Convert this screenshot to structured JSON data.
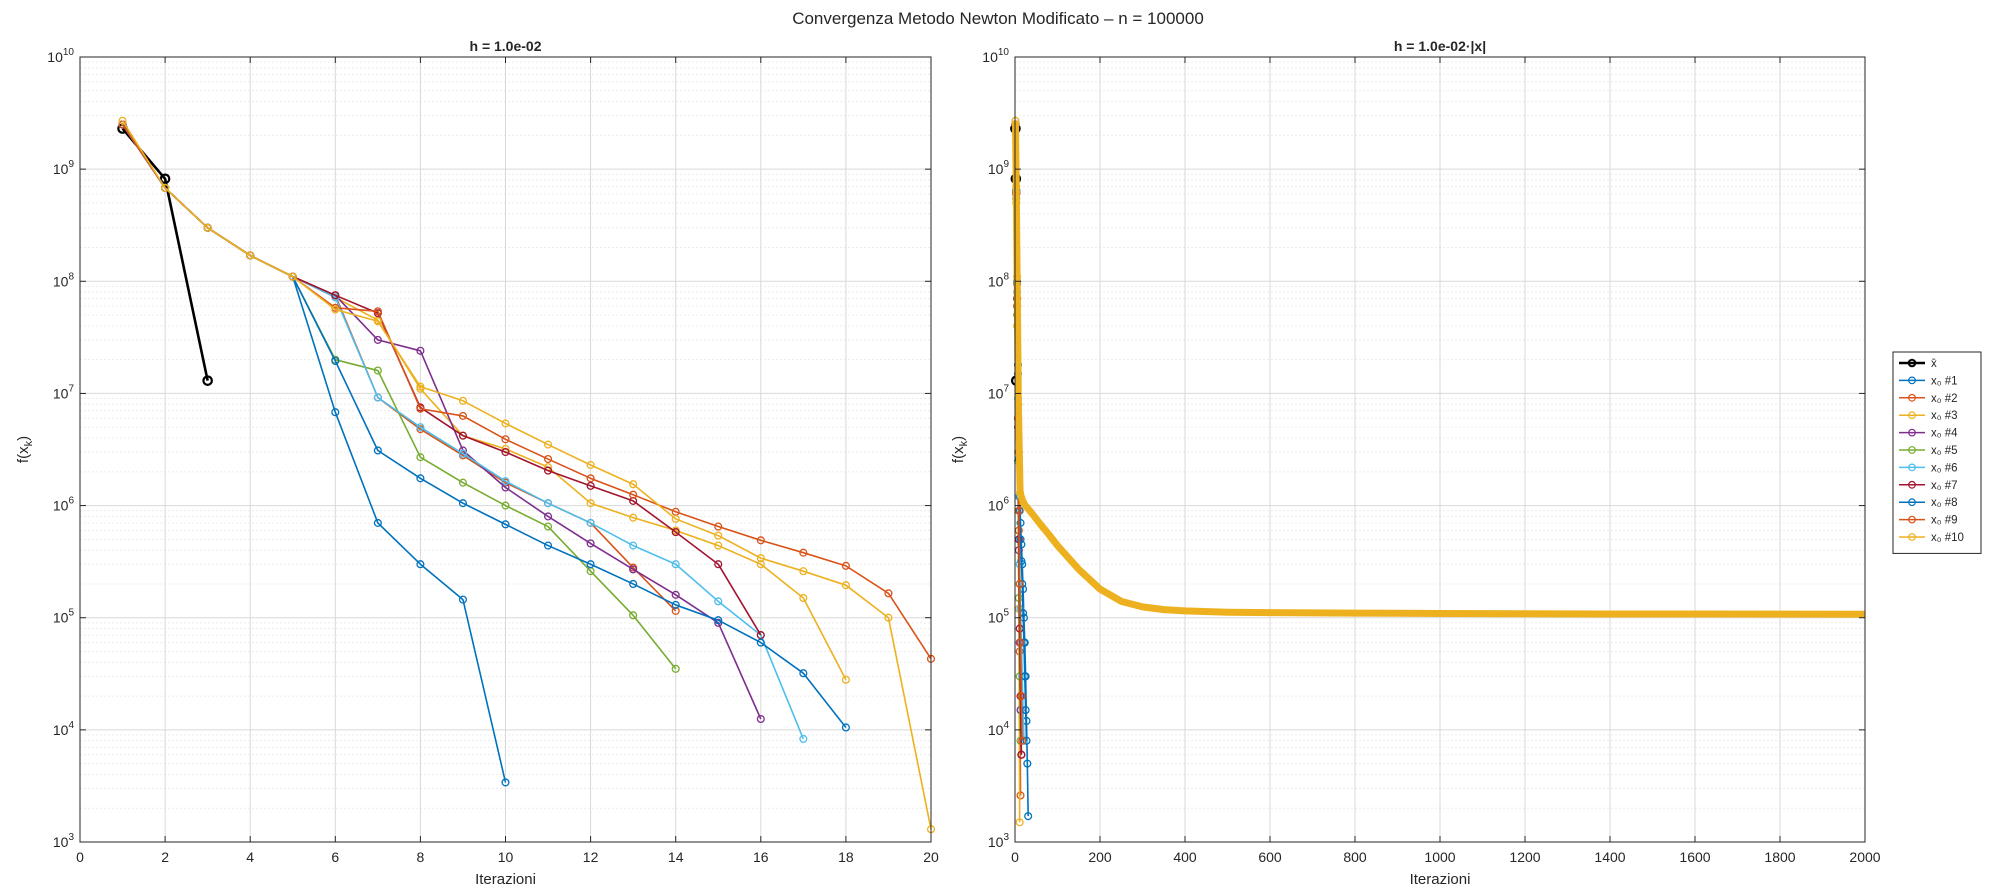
{
  "suptitle": "Convergenza Metodo Newton Modificato – n = 100000",
  "colors": {
    "xbar": "#000000",
    "x01": "#0072BD",
    "x02": "#D95319",
    "x03": "#EDB120",
    "x04": "#7E2F8E",
    "x05": "#77AC30",
    "x06": "#4DBEEE",
    "x07": "#A2142F",
    "x08": "#0072BD",
    "x09": "#D95319",
    "x10": "#EDB120"
  },
  "legend": [
    "x̄",
    "x₀ #1",
    "x₀ #2",
    "x₀ #3",
    "x₀ #4",
    "x₀ #5",
    "x₀ #6",
    "x₀ #7",
    "x₀ #8",
    "x₀ #9",
    "x₀ #10"
  ],
  "chart_data": [
    {
      "type": "line",
      "title": "h = 1.0e-02",
      "xlabel": "Iterazioni",
      "ylabel": "f(x_k)",
      "ylabel_main": "f(x",
      "ylabel_sub": "k",
      "ylabel_close": ")",
      "yscale": "log",
      "xlim": [
        0,
        20
      ],
      "ylim": [
        1000,
        10000000000
      ],
      "xticks": [
        0,
        2,
        4,
        6,
        8,
        10,
        12,
        14,
        16,
        18,
        20
      ],
      "yticks_exp": [
        3,
        4,
        5,
        6,
        7,
        8,
        9,
        10
      ],
      "grid": true,
      "series": [
        {
          "name": "x̄",
          "x": [
            1,
            2,
            3
          ],
          "y": [
            2300000000,
            820000000,
            13000000
          ]
        },
        {
          "name": "x₀ #1",
          "x": [
            1,
            2,
            3,
            4,
            5,
            6,
            7,
            8,
            9,
            10
          ],
          "y": [
            2500000000,
            680000000,
            300000000,
            170000000,
            110000000,
            6800000,
            700000,
            300000,
            145000,
            3400
          ]
        },
        {
          "name": "x₀ #2",
          "x": [
            1,
            2,
            3,
            4,
            5,
            6,
            7,
            8,
            9,
            10,
            11,
            12,
            13,
            14
          ],
          "y": [
            2500000000,
            680000000,
            300000000,
            170000000,
            110000000,
            75000000,
            9200000,
            4800000,
            2800000,
            1600000,
            1050000,
            700000,
            280000,
            115000
          ]
        },
        {
          "name": "x₀ #3",
          "x": [
            1,
            2,
            3,
            4,
            5,
            6,
            7,
            8,
            9,
            10,
            11,
            12,
            13,
            14,
            15,
            16,
            17,
            18
          ],
          "y": [
            2500000000,
            680000000,
            300000000,
            170000000,
            110000000,
            72000000,
            45000000,
            11000000,
            4200000,
            3200000,
            2200000,
            1050000,
            780000,
            600000,
            440000,
            300000,
            150000,
            28000
          ]
        },
        {
          "name": "x₀ #4",
          "x": [
            1,
            2,
            3,
            4,
            5,
            6,
            7,
            8,
            9,
            10,
            11,
            12,
            13,
            14,
            15,
            16
          ],
          "y": [
            2500000000,
            680000000,
            300000000,
            170000000,
            110000000,
            75000000,
            30000000,
            24000000,
            3100000,
            1450000,
            800000,
            460000,
            270000,
            160000,
            90000,
            12500
          ]
        },
        {
          "name": "x₀ #5",
          "x": [
            1,
            2,
            3,
            4,
            5,
            6,
            7,
            8,
            9,
            10,
            11,
            12,
            13,
            14
          ],
          "y": [
            2500000000,
            680000000,
            300000000,
            170000000,
            110000000,
            20000000,
            16000000,
            2700000,
            1600000,
            1000000,
            650000,
            260000,
            105000,
            35000
          ]
        },
        {
          "name": "x₀ #6",
          "x": [
            1,
            2,
            3,
            4,
            5,
            6,
            7,
            8,
            9,
            10,
            11,
            12,
            13,
            14,
            15,
            16,
            17
          ],
          "y": [
            2500000000,
            680000000,
            300000000,
            170000000,
            110000000,
            72000000,
            9200000,
            5000000,
            2900000,
            1650000,
            1050000,
            700000,
            440000,
            300000,
            140000,
            70000,
            8300
          ]
        },
        {
          "name": "x₀ #7",
          "x": [
            1,
            2,
            3,
            4,
            5,
            6,
            7,
            8,
            9,
            10,
            11,
            12,
            13,
            14,
            15,
            16
          ],
          "y": [
            2500000000,
            680000000,
            300000000,
            170000000,
            110000000,
            75000000,
            52000000,
            7500000,
            4200000,
            3000000,
            2050000,
            1500000,
            1100000,
            580000,
            300000,
            70000
          ]
        },
        {
          "name": "x₀ #8",
          "x": [
            1,
            2,
            3,
            4,
            5,
            6,
            7,
            8,
            9,
            10,
            11,
            12,
            13,
            14,
            15,
            16,
            17,
            18
          ],
          "y": [
            2500000000,
            680000000,
            300000000,
            170000000,
            110000000,
            19500000,
            3100000,
            1750000,
            1050000,
            680000,
            440000,
            300000,
            200000,
            130000,
            95000,
            60000,
            32000,
            10500
          ]
        },
        {
          "name": "x₀ #9",
          "x": [
            1,
            2,
            3,
            4,
            5,
            6,
            7,
            8,
            9,
            10,
            11,
            12,
            13,
            14,
            15,
            16,
            17,
            18,
            19,
            20
          ],
          "y": [
            2500000000,
            680000000,
            300000000,
            170000000,
            110000000,
            58000000,
            54000000,
            7300000,
            6300000,
            3900000,
            2600000,
            1750000,
            1250000,
            880000,
            650000,
            490000,
            380000,
            290000,
            165000,
            43000
          ]
        },
        {
          "name": "x₀ #10",
          "x": [
            1,
            2,
            3,
            4,
            5,
            6,
            7,
            8,
            9,
            10,
            11,
            12,
            13,
            14,
            15,
            16,
            17,
            18,
            19,
            20
          ],
          "y": [
            2700000000,
            680000000,
            300000000,
            170000000,
            110000000,
            56000000,
            44000000,
            11500000,
            8600000,
            5400000,
            3500000,
            2300000,
            1550000,
            760000,
            540000,
            340000,
            260000,
            195000,
            100000,
            1300
          ]
        }
      ]
    },
    {
      "type": "line",
      "title": "h = 1.0e-02·|x|",
      "xlabel": "Iterazioni",
      "ylabel": "f(x_k)",
      "ylabel_main": "f(x",
      "ylabel_sub": "k",
      "ylabel_close": ")",
      "yscale": "log",
      "xlim": [
        0,
        2000
      ],
      "ylim": [
        1000,
        10000000000
      ],
      "xticks": [
        0,
        200,
        400,
        600,
        800,
        1000,
        1200,
        1400,
        1600,
        1800,
        2000
      ],
      "yticks_exp": [
        3,
        4,
        5,
        6,
        7,
        8,
        9,
        10
      ],
      "grid": true,
      "legend_position": "outside-right",
      "series": [
        {
          "name": "x̄",
          "x": [
            1,
            2,
            3
          ],
          "y": [
            2300000000,
            820000000,
            13000000
          ]
        },
        {
          "name": "x₀ #1",
          "x": [
            1,
            3,
            5,
            7,
            9,
            11,
            13,
            15,
            17,
            19,
            21,
            23,
            25,
            27,
            29,
            31
          ],
          "y": [
            2500000000,
            650000000,
            100000000,
            18000000,
            3000000,
            1200000,
            700000,
            450000,
            300000,
            180000,
            100000,
            60000,
            30000,
            12000,
            5000,
            1700
          ]
        },
        {
          "name": "x₀ #2",
          "x": [
            1,
            3,
            5,
            7,
            9,
            11,
            13
          ],
          "y": [
            2500000000,
            600000000,
            60000000,
            6000000,
            600000,
            50000,
            2600
          ]
        },
        {
          "name": "x₀ #3",
          "x": [
            1,
            3,
            5,
            7,
            9,
            11
          ],
          "y": [
            2500000000,
            500000000,
            40000000,
            3000000,
            120000,
            1500
          ]
        },
        {
          "name": "x₀ #4",
          "x": [
            1,
            3,
            5,
            7,
            9,
            11,
            13,
            15
          ],
          "y": [
            2500000000,
            600000000,
            70000000,
            5000000,
            400000,
            60000,
            15000,
            6000
          ]
        },
        {
          "name": "x₀ #5",
          "x": [
            1,
            3,
            5,
            7,
            9,
            11,
            13
          ],
          "y": [
            2500000000,
            550000000,
            50000000,
            2500000,
            150000,
            30000,
            8000
          ]
        },
        {
          "name": "x₀ #6",
          "x": [
            1,
            3,
            5,
            7,
            9,
            11,
            13,
            15,
            17,
            19,
            21
          ],
          "y": [
            2500000000,
            620000000,
            80000000,
            9000000,
            1200000,
            300000,
            120000,
            60000,
            30000,
            15000,
            8000
          ]
        },
        {
          "name": "x₀ #7",
          "x": [
            1,
            3,
            5,
            7,
            9,
            11,
            13,
            15
          ],
          "y": [
            2500000000,
            620000000,
            70000000,
            6000000,
            500000,
            80000,
            20000,
            6000
          ]
        },
        {
          "name": "x₀ #8",
          "x": [
            1,
            3,
            5,
            7,
            9,
            11,
            13,
            15,
            17,
            19,
            21,
            23,
            25,
            27
          ],
          "y": [
            2500000000,
            640000000,
            95000000,
            15000000,
            2600000,
            900000,
            500000,
            320000,
            200000,
            110000,
            60000,
            30000,
            15000,
            8000
          ]
        },
        {
          "name": "x₀ #9",
          "x": [
            1,
            3,
            5,
            7,
            9,
            11,
            13,
            15,
            17
          ],
          "y": [
            2500000000,
            620000000,
            60000000,
            6000000,
            900000,
            200000,
            60000,
            20000,
            8000
          ]
        },
        {
          "name": "x₀ #10",
          "x": [
            1,
            3,
            5,
            8,
            12,
            20,
            40,
            60,
            80,
            100,
            150,
            200,
            250,
            300,
            350,
            400,
            500,
            600,
            800,
            1000,
            1200,
            1400,
            1600,
            1800,
            2000
          ],
          "y": [
            2700000000,
            700000000,
            110000000,
            8000000,
            1300000,
            1050000,
            850000,
            680000,
            550000,
            440000,
            270000,
            180000,
            140000,
            125000,
            118000,
            115000,
            112000,
            111000,
            110000,
            109000,
            108500,
            108000,
            107800,
            107600,
            107500
          ]
        }
      ]
    }
  ]
}
